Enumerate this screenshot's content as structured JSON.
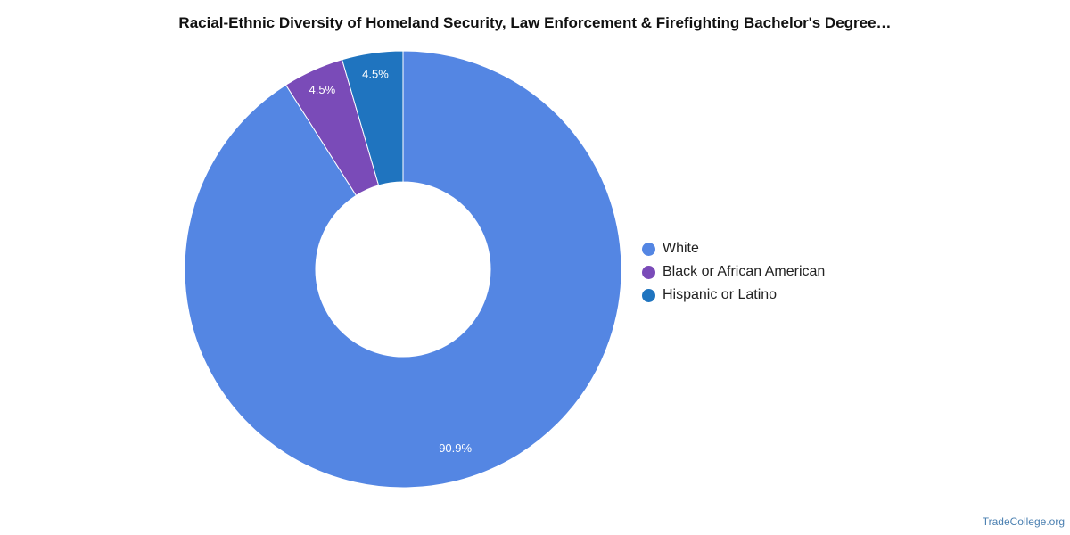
{
  "chart_data": {
    "type": "pie",
    "variant": "donut",
    "title": "Racial-Ethnic Diversity of Homeland Security, Law Enforcement & Firefighting Bachelor's Degree…",
    "slices": [
      {
        "label": "White",
        "value": 90.9,
        "display": "90.9%",
        "color": "#5486e3"
      },
      {
        "label": "Black or African American",
        "value": 4.5,
        "display": "4.5%",
        "color": "#7a4bb8"
      },
      {
        "label": "Hispanic or Latino",
        "value": 4.5,
        "display": "4.5%",
        "color": "#1f74bf"
      }
    ],
    "legend_position": "right"
  },
  "watermark": "TradeCollege.org"
}
